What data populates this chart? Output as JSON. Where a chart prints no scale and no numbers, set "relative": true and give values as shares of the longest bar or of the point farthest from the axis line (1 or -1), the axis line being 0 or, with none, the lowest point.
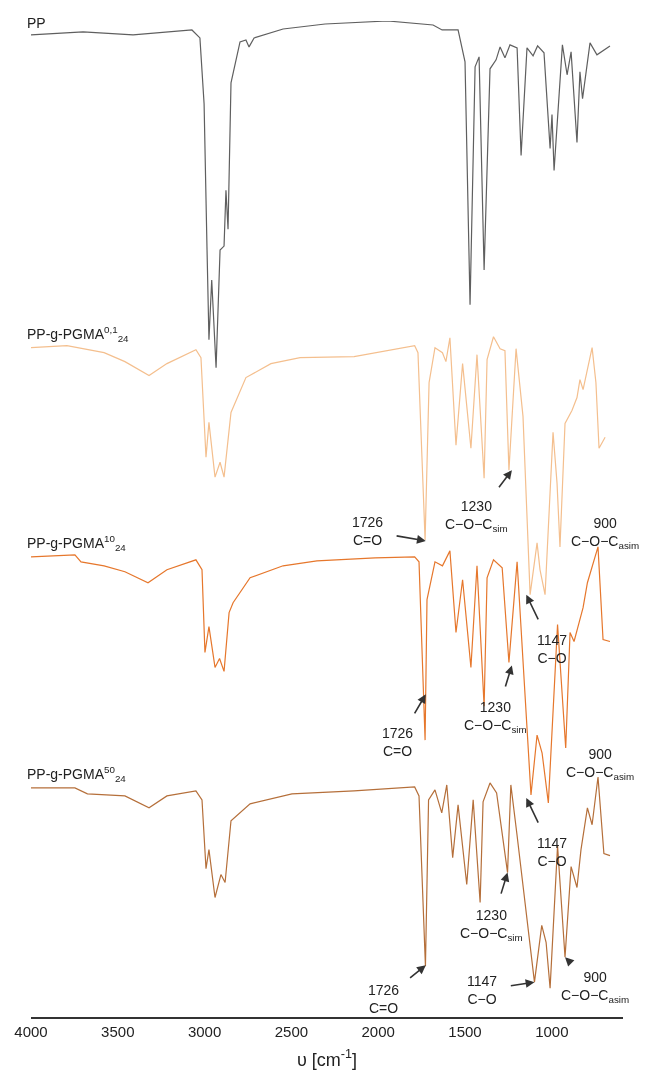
{
  "chart_data": {
    "type": "line",
    "relative": true,
    "xlabel": "υ [cm$^{-1}$]",
    "xlim": [
      4000,
      590
    ],
    "xticks": [
      4000,
      3500,
      3000,
      2500,
      2000,
      1500,
      1000
    ],
    "legend": false,
    "grid": false,
    "series": [
      {
        "name": "PP",
        "color": "#5f5f5f",
        "x": [
          4000,
          3700,
          3412,
          3073,
          3027,
          3003,
          2986,
          2975,
          2959,
          2934,
          2911,
          2888,
          2877,
          2865,
          2848,
          2796,
          2762,
          2744,
          2715,
          2548,
          2306,
          1946,
          1684,
          1632,
          1540,
          1500,
          1471,
          1442,
          1419,
          1390,
          1356,
          1321,
          1298,
          1270,
          1241,
          1200,
          1177,
          1143,
          1108,
          1082,
          1045,
          1010,
          999,
          987,
          939,
          912,
          889,
          855,
          838,
          823,
          780,
          740,
          665
        ],
        "values": [
          0.986,
          0.989,
          0.986,
          0.991,
          0.983,
          0.917,
          0.77,
          0.68,
          0.74,
          0.652,
          0.77,
          0.774,
          0.83,
          0.791,
          0.938,
          0.979,
          0.981,
          0.974,
          0.983,
          0.992,
          0.997,
          1.0,
          0.996,
          0.991,
          0.991,
          0.959,
          0.715,
          0.954,
          0.964,
          0.75,
          0.952,
          0.961,
          0.974,
          0.963,
          0.976,
          0.973,
          0.865,
          0.973,
          0.965,
          0.975,
          0.968,
          0.872,
          0.906,
          0.85,
          0.976,
          0.946,
          0.969,
          0.878,
          0.949,
          0.922,
          0.978,
          0.966,
          0.975
        ]
      },
      {
        "name": "PP-g-PGMA$^{0,1}$$_{24}$",
        "color": "#f4bf8e",
        "x": [
          4000,
          3793,
          3579,
          3459,
          3320,
          3217,
          3050,
          3021,
          2992,
          2975,
          2940,
          2911,
          2888,
          2848,
          2762,
          2618,
          2450,
          2139,
          1790,
          1771,
          1730,
          1707,
          1673,
          1630,
          1610,
          1587,
          1552,
          1514,
          1466,
          1431,
          1390,
          1373,
          1336,
          1298,
          1270,
          1247,
          1206,
          1166,
          1125,
          1085,
          1068,
          1039,
          993,
          970,
          953,
          924,
          884,
          855,
          838,
          820,
          768,
          746,
          728,
          693
        ],
        "values": [
          0.672,
          0.674,
          0.667,
          0.658,
          0.644,
          0.656,
          0.67,
          0.662,
          0.562,
          0.597,
          0.542,
          0.557,
          0.542,
          0.607,
          0.642,
          0.656,
          0.662,
          0.663,
          0.674,
          0.667,
          0.479,
          0.637,
          0.672,
          0.667,
          0.658,
          0.682,
          0.574,
          0.656,
          0.571,
          0.665,
          0.541,
          0.66,
          0.683,
          0.671,
          0.669,
          0.549,
          0.671,
          0.603,
          0.424,
          0.476,
          0.449,
          0.424,
          0.587,
          0.536,
          0.472,
          0.596,
          0.609,
          0.622,
          0.64,
          0.63,
          0.672,
          0.637,
          0.571,
          0.582
        ]
      },
      {
        "name": "PP-g-PGMA$^{10}$$_{24}$",
        "color": "#e6772c",
        "x": [
          4000,
          3747,
          3712,
          3579,
          3459,
          3326,
          3217,
          3050,
          3015,
          2998,
          2975,
          2940,
          2914,
          2888,
          2859,
          2836,
          2738,
          2548,
          2353,
          2018,
          1790,
          1765,
          1730,
          1719,
          1673,
          1630,
          1587,
          1552,
          1514,
          1466,
          1431,
          1390,
          1373,
          1336,
          1286,
          1247,
          1200,
          1120,
          1085,
          1056,
          1020,
          967,
          920,
          895,
          872,
          843,
          820,
          795,
          734,
          705,
          665
        ],
        "values": [
          0.462,
          0.464,
          0.457,
          0.453,
          0.447,
          0.436,
          0.449,
          0.459,
          0.449,
          0.366,
          0.392,
          0.351,
          0.36,
          0.347,
          0.406,
          0.416,
          0.441,
          0.453,
          0.458,
          0.461,
          0.462,
          0.457,
          0.278,
          0.419,
          0.457,
          0.453,
          0.468,
          0.386,
          0.439,
          0.351,
          0.453,
          0.312,
          0.441,
          0.459,
          0.451,
          0.356,
          0.457,
          0.223,
          0.283,
          0.265,
          0.215,
          0.394,
          0.27,
          0.386,
          0.377,
          0.396,
          0.411,
          0.436,
          0.472,
          0.379,
          0.377
        ]
      },
      {
        "name": "PP-g-PGMA$^{50}$$_{24}$",
        "color": "#b56f3a",
        "x": [
          4000,
          3747,
          3675,
          3459,
          3320,
          3217,
          3050,
          3015,
          2992,
          2975,
          2940,
          2906,
          2882,
          2848,
          2738,
          2497,
          2139,
          1790,
          1765,
          1728,
          1710,
          1673,
          1634,
          1605,
          1571,
          1540,
          1490,
          1453,
          1413,
          1396,
          1356,
          1318,
          1255,
          1236,
          1202,
          1100,
          1058,
          1033,
          1010,
          967,
          924,
          889,
          855,
          832,
          795,
          768,
          734,
          700,
          665
        ],
        "values": [
          0.23,
          0.23,
          0.224,
          0.222,
          0.21,
          0.222,
          0.227,
          0.218,
          0.149,
          0.168,
          0.12,
          0.143,
          0.135,
          0.197,
          0.214,
          0.224,
          0.227,
          0.231,
          0.222,
          0.051,
          0.218,
          0.228,
          0.205,
          0.233,
          0.16,
          0.213,
          0.133,
          0.218,
          0.115,
          0.216,
          0.235,
          0.225,
          0.145,
          0.233,
          0.185,
          0.035,
          0.092,
          0.075,
          0.029,
          0.172,
          0.06,
          0.151,
          0.13,
          0.168,
          0.21,
          0.193,
          0.241,
          0.164,
          0.162
        ]
      }
    ],
    "annotations": [
      {
        "text": "1726\nC=O",
        "x": 1726,
        "y": 0.478
      },
      {
        "text": "1230\nC−O−C$_{sim}$",
        "x": 1230,
        "y": 0.549
      },
      {
        "text": "1147\nC−O",
        "x": 1147,
        "y": 0.424
      },
      {
        "text": "900\nC−O−C$_{asim}$",
        "x": 953,
        "y": 0.472
      },
      {
        "text": "1726\nC=O",
        "x": 1726,
        "y": 0.324
      },
      {
        "text": "1230\nC−O−C$_{sim}$",
        "x": 1230,
        "y": 0.353
      },
      {
        "text": "1147\nC−O",
        "x": 1147,
        "y": 0.22
      },
      {
        "text": "900\nC−O−C$_{asim}$",
        "x": 920,
        "y": 0.27
      },
      {
        "text": "1726\nC=O",
        "x": 1726,
        "y": 0.052
      },
      {
        "text": "1230\nC−O−C$_{sim}$",
        "x": 1255,
        "y": 0.145
      },
      {
        "text": "1147\nC−O",
        "x": 1100,
        "y": 0.035
      },
      {
        "text": "900\nC−O−C$_{asim}$",
        "x": 924,
        "y": 0.06
      }
    ]
  }
}
